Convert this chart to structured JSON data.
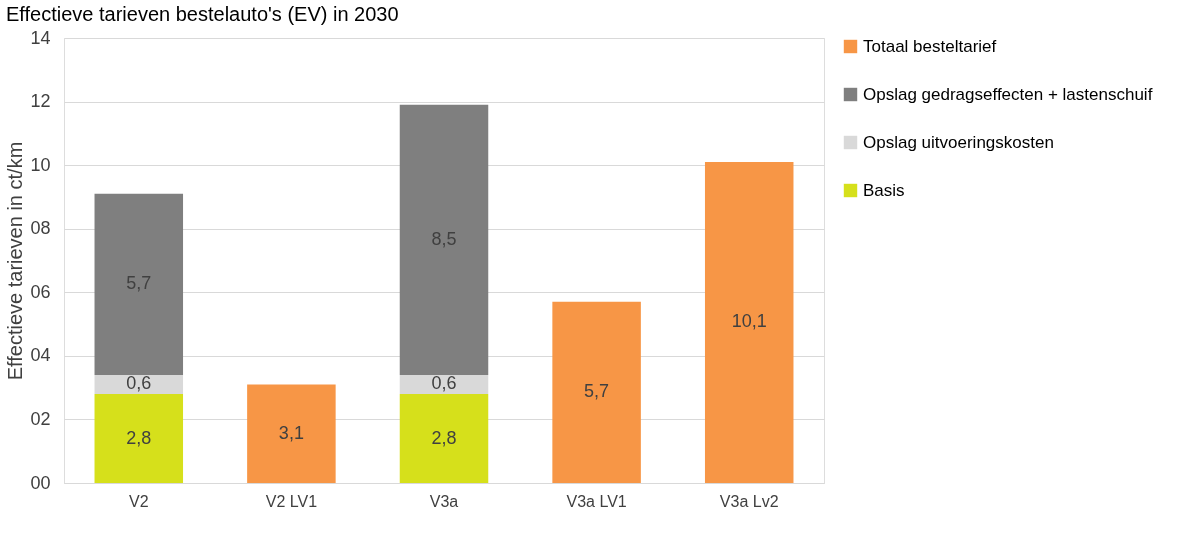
{
  "chart_data": {
    "type": "bar",
    "title": "Effectieve tarieven bestelauto's (EV) in 2030",
    "ylabel": "Effectieve tarieven in ct/km",
    "categories": [
      "V2",
      "V2  LV1",
      "V3a",
      "V3a LV1",
      "V3a Lv2"
    ],
    "stacked": true,
    "series": [
      {
        "name": "Basis",
        "color": "#d6e01b",
        "values": [
          2.8,
          null,
          2.8,
          null,
          null
        ]
      },
      {
        "name": "Opslag uitvoeringskosten",
        "color": "#d9d9d9",
        "values": [
          0.6,
          null,
          0.6,
          null,
          null
        ]
      },
      {
        "name": "Opslag gedragseffecten + lastenschuif",
        "color": "#7f7f7f",
        "values": [
          5.7,
          null,
          8.5,
          null,
          null
        ]
      },
      {
        "name": "Totaal besteltarief",
        "color": "#f79646",
        "values": [
          null,
          3.1,
          null,
          5.7,
          10.1
        ]
      }
    ],
    "value_labels": [
      [
        "2,8",
        null,
        "2,8",
        null,
        null
      ],
      [
        "0,6",
        null,
        "0,6",
        null,
        null
      ],
      [
        "5,7",
        null,
        "8,5",
        null,
        null
      ],
      [
        null,
        "3,1",
        null,
        "5,7",
        "10,1"
      ]
    ],
    "ylim": [
      0,
      14
    ],
    "yticks": [
      {
        "value": 0,
        "label": "00"
      },
      {
        "value": 2,
        "label": "02"
      },
      {
        "value": 4,
        "label": "04"
      },
      {
        "value": 6,
        "label": "06"
      },
      {
        "value": 8,
        "label": "08"
      },
      {
        "value": 10,
        "label": "10"
      },
      {
        "value": 12,
        "label": "12"
      },
      {
        "value": 14,
        "label": "14"
      }
    ],
    "grid": "y",
    "legend": "right"
  }
}
